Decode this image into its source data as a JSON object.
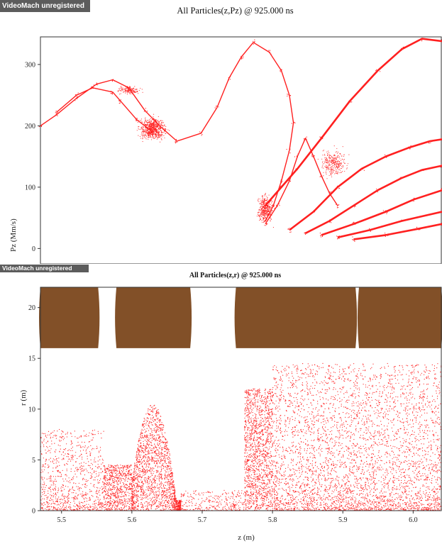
{
  "watermarks": {
    "top": "VideoMach unregistered",
    "bottom": "VideoMach unregistered"
  },
  "colors": {
    "particle": "#ff2020",
    "electrode": "#825028",
    "axis": "#333333"
  },
  "chart_data": [
    {
      "type": "scatter",
      "title": "All Particles(z,Pz) @ 925.000 ns",
      "xlabel": "",
      "ylabel": "Pz (Mm/s)",
      "ylim": [
        -25,
        345
      ],
      "yticks": [
        0,
        100,
        200,
        300
      ],
      "ytick_labels": [
        "0",
        "100",
        "200",
        "300"
      ],
      "series": [
        {
          "values": [
            [
              0.0,
              200
            ],
            [
              0.04,
              218
            ],
            [
              0.09,
              245
            ],
            [
              0.14,
              268
            ],
            [
              0.18,
              275
            ],
            [
              0.22,
              262
            ],
            [
              0.26,
              225
            ],
            [
              0.3,
              198
            ],
            [
              0.34,
              175
            ],
            [
              0.4,
              188
            ],
            [
              0.44,
              230
            ],
            [
              0.47,
              278
            ],
            [
              0.5,
              312
            ],
            [
              0.53,
              336
            ],
            [
              0.57,
              320
            ],
            [
              0.6,
              290
            ],
            [
              0.62,
              250
            ],
            [
              0.63,
              205
            ],
            [
              0.62,
              160
            ],
            [
              0.6,
              110
            ],
            [
              0.58,
              70
            ],
            [
              0.56,
              45
            ]
          ]
        },
        {
          "values": [
            [
              0.04,
              222
            ],
            [
              0.09,
              250
            ],
            [
              0.13,
              262
            ],
            [
              0.18,
              255
            ],
            [
              0.2,
              240
            ],
            [
              0.24,
              210
            ],
            [
              0.28,
              190
            ]
          ]
        },
        {
          "values": [
            [
              0.56,
              40
            ],
            [
              0.59,
              70
            ],
            [
              0.62,
              110
            ],
            [
              0.64,
              150
            ],
            [
              0.66,
              180
            ],
            [
              0.68,
              150
            ],
            [
              0.7,
              118
            ],
            [
              0.72,
              90
            ],
            [
              0.74,
              70
            ]
          ]
        },
        {
          "values": [
            [
              0.56,
              70
            ],
            [
              0.6,
              100
            ],
            [
              0.64,
              130
            ],
            [
              0.7,
              180
            ],
            [
              0.77,
              240
            ],
            [
              0.84,
              290
            ],
            [
              0.9,
              325
            ],
            [
              0.95,
              342
            ],
            [
              1.0,
              338
            ]
          ]
        },
        {
          "values": [
            [
              0.62,
              30
            ],
            [
              0.68,
              60
            ],
            [
              0.74,
              100
            ],
            [
              0.8,
              130
            ],
            [
              0.86,
              150
            ],
            [
              0.92,
              165
            ],
            [
              0.97,
              175
            ],
            [
              1.0,
              178
            ]
          ]
        },
        {
          "values": [
            [
              0.66,
              25
            ],
            [
              0.72,
              45
            ],
            [
              0.78,
              70
            ],
            [
              0.84,
              95
            ],
            [
              0.9,
              115
            ],
            [
              0.95,
              128
            ],
            [
              1.0,
              135
            ]
          ]
        },
        {
          "values": [
            [
              0.7,
              22
            ],
            [
              0.78,
              40
            ],
            [
              0.86,
              60
            ],
            [
              0.93,
              80
            ],
            [
              1.0,
              95
            ]
          ]
        },
        {
          "values": [
            [
              0.74,
              18
            ],
            [
              0.82,
              30
            ],
            [
              0.9,
              45
            ],
            [
              1.0,
              60
            ]
          ]
        },
        {
          "values": [
            [
              0.78,
              15
            ],
            [
              0.86,
              22
            ],
            [
              0.94,
              32
            ],
            [
              1.0,
              40
            ]
          ]
        }
      ],
      "clouds": [
        {
          "center": [
            0.28,
            195
          ],
          "spread": [
            0.05,
            28
          ],
          "n": 700
        },
        {
          "center": [
            0.56,
            65
          ],
          "spread": [
            0.03,
            35
          ],
          "n": 420
        },
        {
          "center": [
            0.22,
            258
          ],
          "spread": [
            0.04,
            10
          ],
          "n": 160
        },
        {
          "center": [
            0.73,
            140
          ],
          "spread": [
            0.05,
            35
          ],
          "n": 300
        }
      ]
    },
    {
      "type": "scatter",
      "title": "All Particles(z,r) @ 925.000 ns",
      "xlabel": "z (m)",
      "ylabel": "r (m)",
      "xlim": [
        5.47,
        6.04
      ],
      "ylim": [
        0,
        22
      ],
      "xticks": [
        5.5,
        5.6,
        5.7,
        5.8,
        5.9,
        6.0
      ],
      "xtick_labels": [
        "5.5",
        "5.6",
        "5.7",
        "5.8",
        "5.9",
        "6.0"
      ],
      "yticks": [
        0,
        5,
        10,
        15,
        20
      ],
      "ytick_labels": [
        "0",
        "5",
        "10",
        "15",
        "20"
      ],
      "electrodes": [
        {
          "z0": 5.47,
          "z1": 5.552,
          "r0": 16.0,
          "r1": 22.0
        },
        {
          "z0": 5.578,
          "z1": 5.683,
          "r0": 16.0,
          "r1": 22.0
        },
        {
          "z0": 5.748,
          "z1": 5.918,
          "r0": 16.0,
          "r1": 22.0
        },
        {
          "z0": 5.923,
          "z1": 6.04,
          "r0": 16.0,
          "r1": 22.0
        }
      ],
      "clouds": [
        {
          "z": [
            5.47,
            5.56
          ],
          "r": [
            0,
            8
          ],
          "n": 900,
          "bias": "low"
        },
        {
          "z": [
            5.56,
            5.6
          ],
          "r": [
            0,
            4.5
          ],
          "n": 700,
          "bias": "uniform"
        },
        {
          "z": [
            5.6,
            5.67
          ],
          "r": [
            0,
            10.5
          ],
          "n": 1800,
          "bias": "peak",
          "peak": 5.63
        },
        {
          "z": [
            5.67,
            5.76
          ],
          "r": [
            0,
            2
          ],
          "n": 300,
          "bias": "low"
        },
        {
          "z": [
            5.76,
            5.8
          ],
          "r": [
            0,
            12
          ],
          "n": 1400,
          "bias": "uniform"
        },
        {
          "z": [
            5.8,
            6.04
          ],
          "r": [
            0,
            14.5
          ],
          "n": 4200,
          "bias": "low"
        }
      ]
    }
  ]
}
